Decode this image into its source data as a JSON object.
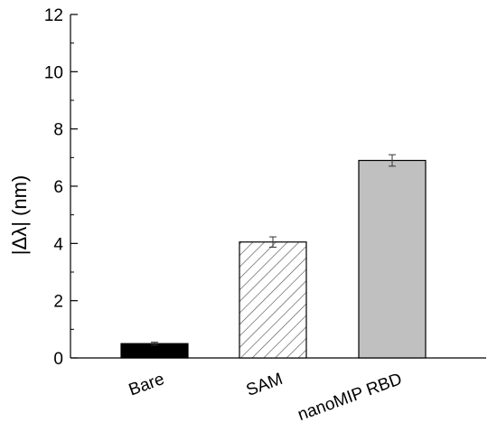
{
  "chart_data": {
    "type": "bar",
    "title": "",
    "xlabel": "",
    "ylabel": "|Δλ| (nm)",
    "ylim": [
      0,
      12
    ],
    "yticks": [
      "0",
      "2",
      "4",
      "6",
      "8",
      "10",
      "12"
    ],
    "grid": false,
    "categories": [
      "Bare",
      "SAM",
      "nanoMIP RBD"
    ],
    "values": [
      0.5,
      4.05,
      6.9
    ],
    "errors": [
      0.05,
      0.18,
      0.2
    ],
    "fills": [
      "solid-black",
      "hatched",
      "solid-gray"
    ],
    "colors": {
      "bare": "#000000",
      "sam": "#ffffff",
      "nanomip": "#c0c0c0",
      "hatch": "#555555",
      "axis": "#000000"
    }
  }
}
